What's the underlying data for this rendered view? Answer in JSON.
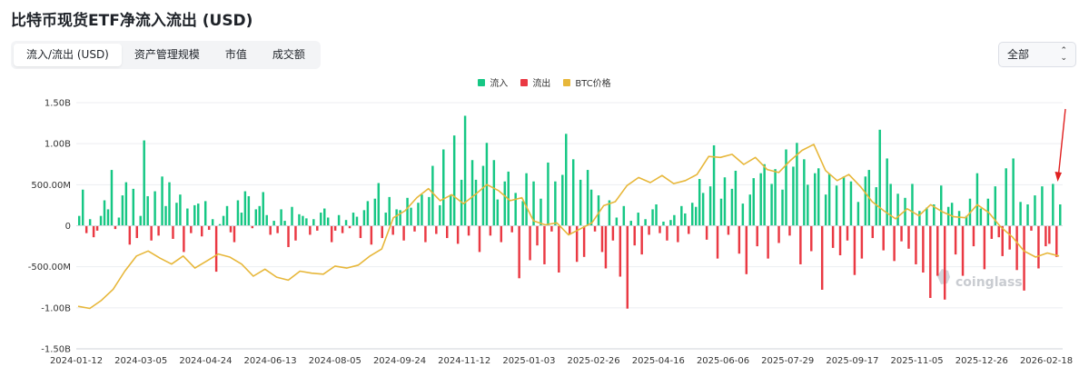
{
  "page": {
    "title": "比特币现货ETF净流入流出 (USD)",
    "tabs": [
      {
        "label": "流入/流出 (USD)",
        "active": true
      },
      {
        "label": "资产管理规模",
        "active": false
      },
      {
        "label": "市值",
        "active": false
      },
      {
        "label": "成交额",
        "active": false
      }
    ],
    "select": {
      "value": "全部"
    },
    "watermark": "coinglass"
  },
  "colors": {
    "inflow": "#16c784",
    "outflow": "#ea3943",
    "btc": "#e7b73a",
    "arrow": "#e02020"
  },
  "chart_data": {
    "type": "bar",
    "title": "比特币现货ETF净流入流出 (USD)",
    "legend": [
      {
        "name": "流入",
        "color": "#16c784"
      },
      {
        "name": "流出",
        "color": "#ea3943"
      },
      {
        "name": "BTC价格",
        "color": "#e7b73a"
      }
    ],
    "legend_position": "top-center",
    "ylim": [
      -1500,
      1500
    ],
    "y_unit": "M USD",
    "y_ticks": [
      {
        "value": 1500,
        "label": "1.50B"
      },
      {
        "value": 1000,
        "label": "1.00B"
      },
      {
        "value": 500,
        "label": "500.00M"
      },
      {
        "value": 0,
        "label": "0"
      },
      {
        "value": -500,
        "label": "-500.00M"
      },
      {
        "value": -1000,
        "label": "-1.00B"
      },
      {
        "value": -1500,
        "label": "-1.50B"
      }
    ],
    "x_ticks": [
      "2024-01-12",
      "2024-03-05",
      "2024-04-24",
      "2024-06-13",
      "2024-08-05",
      "2024-09-24",
      "2024-11-12",
      "2025-01-03",
      "2025-02-26",
      "2025-04-16",
      "2025-06-06",
      "2025-07-29",
      "2025-09-17",
      "2025-11-05",
      "2025-12-26",
      "2026-02-18"
    ],
    "series": [
      {
        "name": "流入/流出",
        "sampling": "every 4th trading day, in x_ticks order",
        "values": [
          120,
          440,
          -90,
          80,
          -140,
          -60,
          120,
          310,
          200,
          680,
          -40,
          100,
          370,
          530,
          -230,
          450,
          -150,
          120,
          1040,
          360,
          -180,
          420,
          -120,
          600,
          240,
          530,
          -160,
          280,
          380,
          -320,
          210,
          -90,
          250,
          270,
          -130,
          300,
          -50,
          80,
          -560,
          20,
          120,
          240,
          -80,
          -200,
          310,
          160,
          420,
          360,
          -30,
          200,
          240,
          410,
          130,
          -110,
          60,
          -90,
          200,
          60,
          -260,
          230,
          -180,
          140,
          120,
          90,
          -110,
          80,
          -60,
          160,
          210,
          100,
          -200,
          -60,
          130,
          -90,
          70,
          -30,
          160,
          110,
          -150,
          190,
          300,
          -230,
          330,
          520,
          -150,
          160,
          350,
          -110,
          200,
          190,
          -180,
          340,
          220,
          -70,
          280,
          380,
          -200,
          350,
          730,
          -100,
          250,
          930,
          -150,
          380,
          1100,
          -220,
          560,
          1340,
          -120,
          800,
          560,
          -320,
          730,
          1010,
          -120,
          800,
          320,
          -200,
          540,
          660,
          -80,
          400,
          -640,
          300,
          640,
          -420,
          540,
          -240,
          330,
          -470,
          770,
          -70,
          540,
          -570,
          620,
          1120,
          -110,
          810,
          -440,
          560,
          -380,
          680,
          440,
          -70,
          370,
          -320,
          -520,
          310,
          -180,
          100,
          -620,
          240,
          -1010,
          60,
          -240,
          160,
          -350,
          80,
          -110,
          200,
          260,
          -90,
          50,
          -180,
          70,
          130,
          -200,
          240,
          150,
          -100,
          280,
          230,
          570,
          400,
          -170,
          480,
          980,
          -400,
          330,
          590,
          -110,
          450,
          670,
          -340,
          270,
          -590,
          380,
          580,
          -250,
          640,
          750,
          -400,
          510,
          690,
          -210,
          440,
          930,
          -120,
          720,
          1010,
          -470,
          810,
          500,
          -310,
          640,
          700,
          -780,
          380,
          630,
          -270,
          490,
          -360,
          600,
          -180,
          540,
          -600,
          290,
          -400,
          600,
          680,
          -150,
          470,
          1170,
          -300,
          820,
          510,
          -430,
          390,
          -190,
          340,
          -280,
          510,
          -470,
          180,
          -570,
          220,
          -880,
          260,
          -610,
          490,
          -900,
          230,
          280,
          -350,
          180,
          -610,
          120,
          330,
          -250,
          640,
          210,
          -530,
          330,
          -160,
          480,
          -140,
          -370,
          700,
          -290,
          820,
          -540,
          290,
          -790,
          260,
          -60,
          370,
          -520,
          480,
          -250,
          -220,
          510,
          -380,
          260
        ]
      },
      {
        "name": "BTC价格",
        "axis": "secondary (hidden)",
        "values": [
          43500,
          42500,
          46500,
          52000,
          61000,
          68500,
          71000,
          67500,
          64500,
          68500,
          62500,
          66000,
          69500,
          68000,
          64500,
          58500,
          62000,
          58000,
          56500,
          61000,
          60000,
          59500,
          63500,
          62500,
          64000,
          68500,
          72000,
          87500,
          91000,
          97500,
          102000,
          96000,
          99000,
          94500,
          99000,
          104000,
          101000,
          96000,
          97500,
          86000,
          84000,
          85000,
          79000,
          82000,
          85000,
          93500,
          95500,
          103500,
          107500,
          105000,
          108500,
          104500,
          106000,
          109000,
          118000,
          117500,
          119000,
          114000,
          117500,
          111500,
          110000,
          116000,
          121000,
          124000,
          111000,
          106000,
          109000,
          103000,
          95500,
          91000,
          87000,
          92000,
          88500,
          94000,
          90500,
          88000,
          87500,
          94000,
          90000,
          83000,
          78000,
          71000,
          68000,
          70000,
          68500
        ]
      }
    ]
  }
}
